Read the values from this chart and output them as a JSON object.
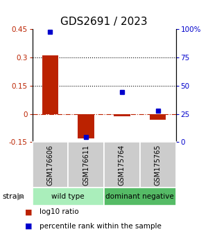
{
  "title": "GDS2691 / 2023",
  "samples": [
    "GSM176606",
    "GSM176611",
    "GSM175764",
    "GSM175765"
  ],
  "log10_ratio": [
    0.311,
    -0.13,
    -0.012,
    -0.032
  ],
  "percentile_rank": [
    0.98,
    0.045,
    0.445,
    0.28
  ],
  "ylim_left": [
    -0.15,
    0.45
  ],
  "ylim_right": [
    0.0,
    1.0
  ],
  "yticks_left": [
    -0.15,
    0.0,
    0.15,
    0.3,
    0.45
  ],
  "ytick_labels_left": [
    "-0.15",
    "0",
    "0.15",
    "0.3",
    "0.45"
  ],
  "yticks_right": [
    0.0,
    0.25,
    0.5,
    0.75,
    1.0
  ],
  "ytick_labels_right": [
    "0",
    "25",
    "50",
    "75",
    "100%"
  ],
  "hlines_dotted": [
    0.15,
    0.3
  ],
  "hline_dashed": 0.0,
  "bar_color": "#bb2200",
  "dot_color": "#0000cc",
  "groups": [
    {
      "label": "wild type",
      "samples": [
        0,
        1
      ],
      "color": "#aaeebb"
    },
    {
      "label": "dominant negative",
      "samples": [
        2,
        3
      ],
      "color": "#55bb66"
    }
  ],
  "group_row_label": "strain",
  "legend_red_label": "log10 ratio",
  "legend_blue_label": "percentile rank within the sample",
  "sample_box_color": "#cccccc",
  "title_fontsize": 11,
  "tick_fontsize": 7.5,
  "sample_fontsize": 7,
  "group_fontsize": 7.5,
  "legend_fontsize": 7.5
}
